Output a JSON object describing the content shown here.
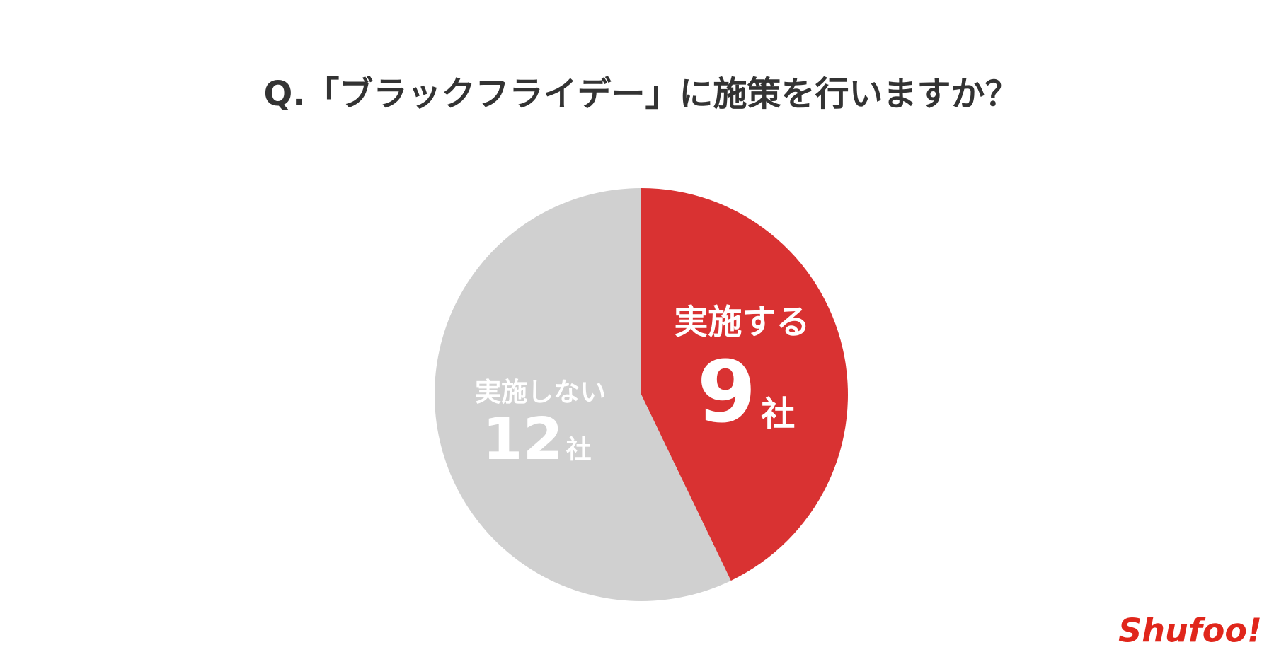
{
  "chart_data": {
    "type": "pie",
    "title": "Q.「ブラックフライデー」に施策を行いますか？",
    "categories": [
      "実施する",
      "実施しない"
    ],
    "values": [
      9,
      12
    ],
    "unit": "社",
    "colors": [
      "#d93232",
      "#d0d0d0"
    ]
  },
  "logo": "Shufoo!"
}
